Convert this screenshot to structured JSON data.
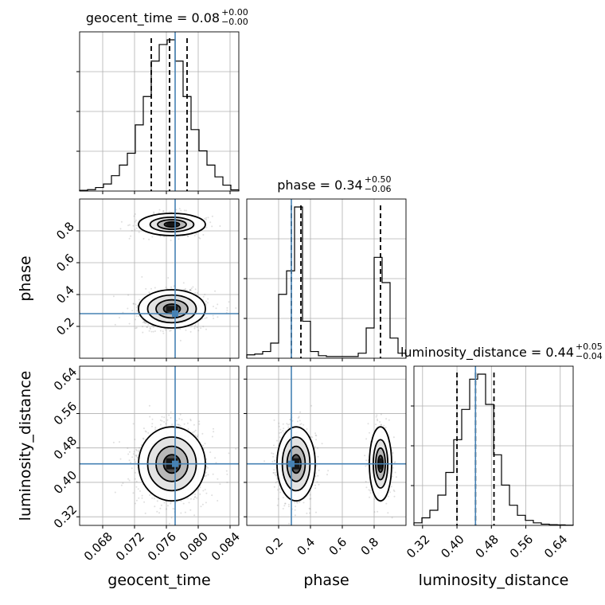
{
  "chart_data": {
    "type": "corner",
    "parameters": [
      "geocent_time",
      "phase",
      "luminosity_distance"
    ],
    "truths": {
      "geocent_time": 0.0771,
      "phase": 0.28,
      "luminosity_distance": 0.443
    },
    "colors": {
      "truth": "#4682b4",
      "hist": "#000000",
      "grid": "#b0b0b0",
      "scatter": "#7f7f7f"
    },
    "titles": [
      {
        "param": "geocent_time",
        "text": "geocent_time = 0.08",
        "upper": "+0.00",
        "lower": "−0.00"
      },
      {
        "param": "phase",
        "text": "phase = 0.34",
        "upper": "+0.50",
        "lower": "−0.06"
      },
      {
        "param": "luminosity_distance",
        "text": "luminosity_distance = 0.44",
        "upper": "+0.05",
        "lower": "−0.04"
      }
    ],
    "axes": {
      "geocent_time": {
        "range": [
          0.0651,
          0.0851
        ],
        "ticks": [
          0.068,
          0.072,
          0.076,
          0.08,
          0.084
        ],
        "tick_labels": [
          "0.068",
          "0.072",
          "0.076",
          "0.080",
          "0.084"
        ],
        "label": "geocent_time"
      },
      "phase": {
        "range": [
          0.0,
          1.0
        ],
        "ticks": [
          0.2,
          0.4,
          0.6,
          0.8
        ],
        "tick_labels": [
          "0.2",
          "0.4",
          "0.6",
          "0.8"
        ],
        "label": "phase"
      },
      "luminosity_distance": {
        "range": [
          0.3,
          0.67
        ],
        "ticks": [
          0.32,
          0.4,
          0.48,
          0.56,
          0.64
        ],
        "tick_labels": [
          "0.32",
          "0.40",
          "0.48",
          "0.56",
          "0.64"
        ],
        "label": "luminosity_distance"
      }
    },
    "histograms": {
      "geocent_time": {
        "bin_edges": [
          0.0651,
          0.0661,
          0.0671,
          0.0681,
          0.0691,
          0.0701,
          0.0711,
          0.0721,
          0.0731,
          0.0741,
          0.0751,
          0.0761,
          0.0771,
          0.0781,
          0.0791,
          0.0801,
          0.0811,
          0.0821,
          0.0831,
          0.0841,
          0.0851
        ],
        "counts": [
          0.3,
          0.6,
          1.5,
          3.0,
          6.5,
          11,
          16,
          28,
          40,
          55,
          62,
          64,
          55,
          40,
          26,
          17,
          11,
          6,
          2.5,
          0.5
        ],
        "quantiles": [
          0.0741,
          0.0764,
          0.0786
        ]
      },
      "phase": {
        "bin_edges": [
          0.0,
          0.05,
          0.1,
          0.15,
          0.2,
          0.25,
          0.3,
          0.35,
          0.4,
          0.45,
          0.5,
          0.55,
          0.6,
          0.65,
          0.7,
          0.75,
          0.8,
          0.85,
          0.9,
          0.95,
          1.0
        ],
        "counts": [
          2,
          2.5,
          4,
          9,
          38,
          52,
          90,
          22,
          4,
          1.5,
          1,
          1,
          1,
          1,
          3,
          18,
          60,
          45,
          12,
          3
        ],
        "quantiles": [
          0.28,
          0.34,
          0.84
        ]
      },
      "luminosity_distance": {
        "bin_edges": [
          0.3,
          0.3185,
          0.337,
          0.3555,
          0.374,
          0.3925,
          0.411,
          0.4295,
          0.448,
          0.4665,
          0.485,
          0.5035,
          0.522,
          0.5405,
          0.559,
          0.5775,
          0.596,
          0.6145,
          0.633,
          0.6515,
          0.67
        ],
        "counts": [
          1,
          3,
          6,
          12,
          21,
          34,
          46,
          58,
          60,
          48,
          28,
          16,
          8,
          4,
          2,
          1,
          0.5,
          0.3,
          0.2,
          0.1
        ],
        "quantiles": [
          0.4,
          0.443,
          0.486
        ]
      }
    }
  }
}
